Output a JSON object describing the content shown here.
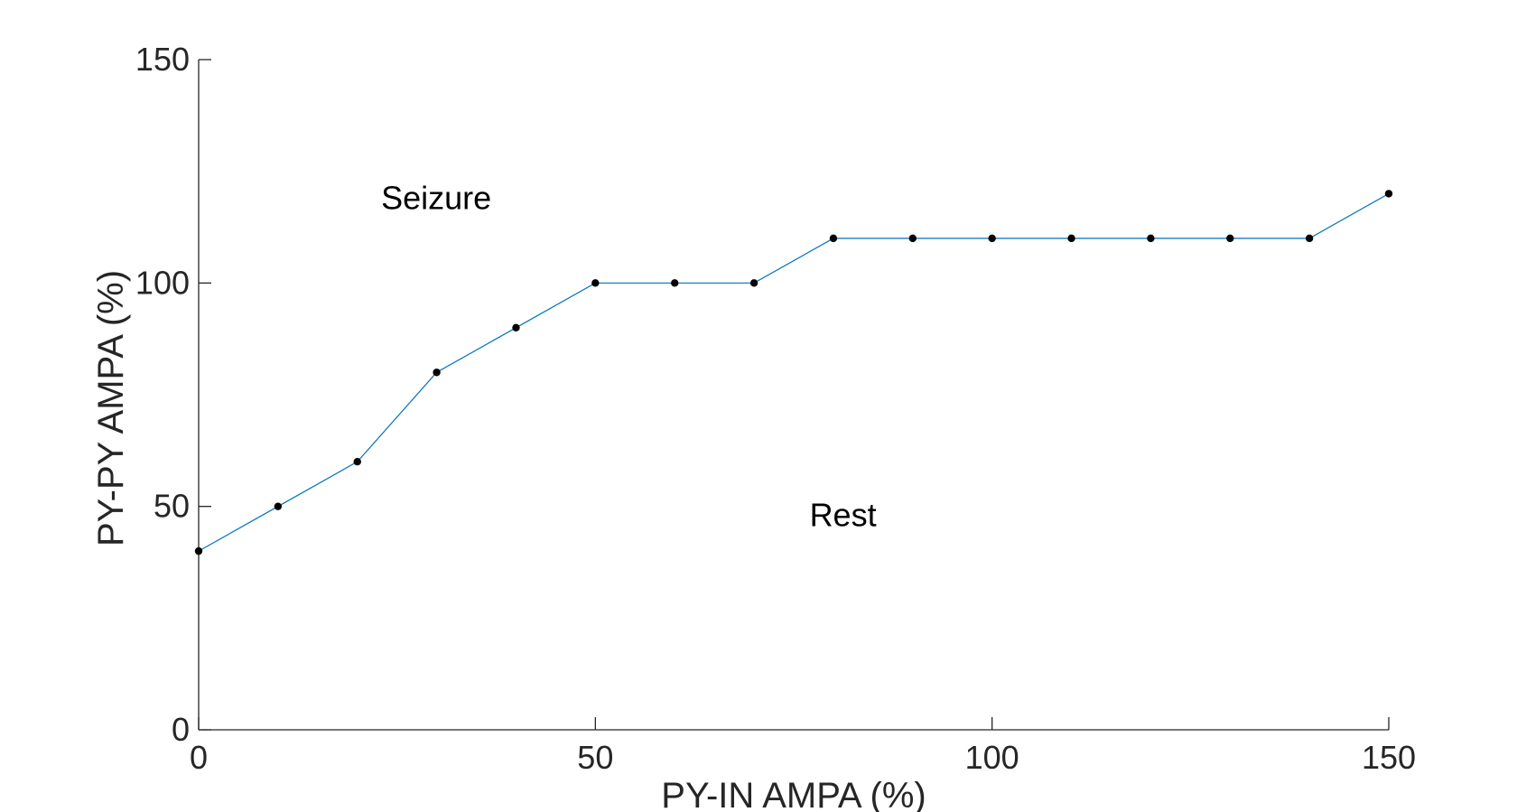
{
  "chart_data": {
    "type": "line",
    "xlabel": "PY-IN AMPA (%)",
    "ylabel": "PY-PY AMPA (%)",
    "xlim": [
      0,
      150
    ],
    "ylim": [
      0,
      150
    ],
    "xticks": [
      0,
      50,
      100,
      150
    ],
    "yticks": [
      0,
      50,
      100,
      150
    ],
    "grid": false,
    "series": [
      {
        "x": [
          0,
          10,
          20,
          30,
          40,
          50,
          60,
          70,
          80,
          90,
          100,
          110,
          120,
          130,
          140,
          150
        ],
        "y": [
          40,
          50,
          60,
          80,
          90,
          100,
          100,
          100,
          110,
          110,
          110,
          110,
          110,
          110,
          110,
          120
        ],
        "line_color": "#0072BD",
        "marker_color": "#000000"
      }
    ],
    "annotations": [
      {
        "text": "Seizure",
        "x": 23,
        "y": 119
      },
      {
        "text": "Rest",
        "x": 77,
        "y": 48
      }
    ]
  }
}
